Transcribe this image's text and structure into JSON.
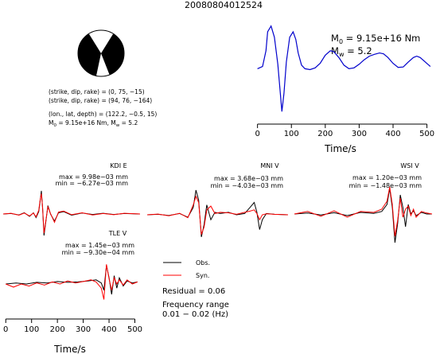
{
  "title": "20080804012524",
  "source_info": {
    "lines": [
      "(strike, dip, rake) = (0, 75, −15)",
      "(strike, dip, rake) = (94, 76, −164)",
      "(lon., lat, depth) = (122.2, −0.5, 15)"
    ],
    "m0_sym": "M",
    "m0_sub": "0",
    "m0_value": " = 9.15e+16 Nm, ",
    "mw_sym": "M",
    "mw_sub": "w",
    "mw_value": " = 5.2"
  },
  "stf": {
    "m0_sym": "M",
    "m0_sub": "0",
    "m0_text": " = 9.15e+16 Nm",
    "mw_sym": "M",
    "mw_sub": "w",
    "mw_text": " = 5.2"
  },
  "legend": {
    "obs": "Obs.",
    "syn": "Syn."
  },
  "residual": "Residual = 0.06",
  "freq": {
    "line1": "Frequency range",
    "line2": "0.01 − 0.02 (Hz)"
  },
  "colors": {
    "obs": "#000000",
    "syn": "#ff0000",
    "stf": "#0000cc",
    "beachball": "#000000"
  },
  "chart_data": [
    {
      "type": "line",
      "name": "source-time-function",
      "xlabel": "Time/s",
      "ylabel": "",
      "xlim": [
        -25,
        515
      ],
      "ylim": [
        -1.0,
        1.05
      ],
      "xticks": [
        0,
        100,
        200,
        300,
        400,
        500
      ],
      "xtick_labels": [
        "0",
        "100",
        "200",
        "300",
        "400",
        "500"
      ],
      "series": [
        {
          "x": [
            0,
            15,
            25,
            30,
            40,
            50,
            60,
            68,
            72,
            78,
            85,
            95,
            105,
            113,
            120,
            130,
            140,
            155,
            170,
            185,
            200,
            215,
            225,
            240,
            255,
            270,
            285,
            300,
            315,
            330,
            345,
            360,
            372,
            385,
            400,
            415,
            430,
            445,
            460,
            470,
            480,
            495,
            510
          ],
          "y": [
            0.0,
            0.05,
            0.4,
            0.82,
            0.95,
            0.7,
            0.1,
            -0.6,
            -0.95,
            -0.55,
            0.15,
            0.7,
            0.82,
            0.65,
            0.35,
            0.08,
            0.0,
            -0.02,
            0.02,
            0.12,
            0.3,
            0.4,
            0.38,
            0.25,
            0.08,
            0.0,
            0.02,
            0.1,
            0.2,
            0.28,
            0.32,
            0.35,
            0.33,
            0.25,
            0.12,
            0.03,
            0.04,
            0.15,
            0.25,
            0.28,
            0.25,
            0.15,
            0.05
          ]
        }
      ]
    },
    {
      "type": "line",
      "station": "KDI E",
      "max_label": "max = 9.98e−03 mm",
      "min_label": "min = −6.27e−03 mm",
      "xlim": [
        0,
        520
      ],
      "ylim": [
        -1.0,
        1.0
      ],
      "series": [
        {
          "name": "Obs.",
          "x": [
            0,
            30,
            60,
            80,
            100,
            115,
            125,
            135,
            140,
            145,
            150,
            155,
            160,
            170,
            180,
            195,
            210,
            230,
            260,
            300,
            340,
            380,
            420,
            460,
            520
          ],
          "y": [
            0.0,
            0.02,
            -0.04,
            0.05,
            -0.1,
            0.05,
            -0.15,
            0.1,
            0.5,
            0.97,
            0.2,
            -0.9,
            -0.5,
            0.35,
            0.0,
            -0.3,
            0.05,
            0.1,
            -0.05,
            0.04,
            -0.02,
            0.03,
            -0.02,
            0.02,
            0.0
          ]
        },
        {
          "name": "Syn.",
          "x": [
            0,
            30,
            60,
            80,
            100,
            115,
            125,
            135,
            140,
            145,
            150,
            155,
            160,
            170,
            180,
            195,
            210,
            230,
            260,
            300,
            340,
            380,
            420,
            460,
            520
          ],
          "y": [
            0.0,
            0.03,
            -0.05,
            0.04,
            -0.08,
            0.04,
            -0.12,
            0.15,
            0.55,
            0.85,
            0.25,
            -0.8,
            -0.45,
            0.3,
            0.02,
            -0.35,
            0.08,
            0.12,
            -0.03,
            0.05,
            -0.04,
            0.02,
            -0.03,
            0.03,
            0.0
          ]
        }
      ]
    },
    {
      "type": "line",
      "station": "MNI V",
      "max_label": "max = 3.68e−03 mm",
      "min_label": "min = −4.03e−03 mm",
      "xlim": [
        0,
        520
      ],
      "ylim": [
        -1.0,
        1.0
      ],
      "series": [
        {
          "name": "Obs.",
          "x": [
            0,
            40,
            80,
            120,
            150,
            170,
            180,
            190,
            200,
            210,
            220,
            235,
            250,
            270,
            300,
            330,
            360,
            380,
            395,
            405,
            415,
            425,
            440,
            470,
            520
          ],
          "y": [
            0.0,
            0.02,
            -0.03,
            0.05,
            -0.1,
            0.3,
            1.0,
            0.6,
            -0.9,
            -0.4,
            0.4,
            -0.2,
            0.1,
            0.05,
            0.1,
            0.0,
            0.05,
            0.3,
            0.5,
            0.1,
            -0.6,
            -0.2,
            0.05,
            0.02,
            0.0
          ]
        },
        {
          "name": "Syn.",
          "x": [
            0,
            40,
            80,
            120,
            150,
            170,
            180,
            190,
            200,
            210,
            220,
            235,
            250,
            270,
            300,
            330,
            360,
            380,
            395,
            405,
            415,
            425,
            440,
            470,
            520
          ],
          "y": [
            0.0,
            0.03,
            -0.04,
            0.06,
            -0.12,
            0.4,
            0.75,
            0.5,
            -0.8,
            -0.5,
            0.2,
            0.35,
            0.05,
            0.1,
            0.08,
            0.02,
            0.1,
            0.15,
            0.2,
            0.05,
            -0.2,
            0.0,
            0.04,
            0.02,
            0.0
          ]
        }
      ]
    },
    {
      "type": "line",
      "station": "WSI V",
      "max_label": "max = 1.20e−03 mm",
      "min_label": "min = −1.48e−03 mm",
      "xlim": [
        0,
        520
      ],
      "ylim": [
        -1.0,
        1.0
      ],
      "series": [
        {
          "name": "Obs.",
          "x": [
            0,
            50,
            100,
            150,
            200,
            250,
            300,
            330,
            350,
            360,
            370,
            380,
            390,
            400,
            410,
            420,
            430,
            440,
            450,
            460,
            480,
            500,
            520
          ],
          "y": [
            0.0,
            0.03,
            -0.03,
            0.04,
            -0.05,
            0.05,
            0.02,
            0.08,
            0.3,
            0.8,
            0.2,
            -0.9,
            -0.3,
            0.6,
            0.2,
            -0.4,
            0.3,
            0.0,
            0.1,
            -0.05,
            0.05,
            0.0,
            0.0
          ]
        },
        {
          "name": "Syn.",
          "x": [
            0,
            50,
            100,
            150,
            200,
            250,
            300,
            330,
            350,
            360,
            370,
            380,
            390,
            400,
            410,
            420,
            430,
            440,
            450,
            460,
            480,
            500,
            520
          ],
          "y": [
            0.0,
            0.08,
            -0.07,
            0.1,
            -0.1,
            0.08,
            0.05,
            0.15,
            0.4,
            0.85,
            0.3,
            -0.7,
            -0.2,
            0.5,
            -0.1,
            0.15,
            0.25,
            -0.05,
            0.15,
            -0.1,
            0.08,
            0.03,
            0.0
          ]
        }
      ]
    },
    {
      "type": "line",
      "station": "TLE V",
      "max_label": "max = 1.45e−03 mm",
      "min_label": "min = −9.30e−04 mm",
      "xlabel": "Time/s",
      "xlim": [
        -10,
        520
      ],
      "ylim": [
        -1.0,
        1.0
      ],
      "xticks": [
        0,
        100,
        200,
        300,
        400,
        500
      ],
      "xtick_labels": [
        "0",
        "100",
        "200",
        "300",
        "400",
        "500"
      ],
      "series": [
        {
          "name": "Obs.",
          "x": [
            0,
            40,
            80,
            120,
            160,
            200,
            240,
            280,
            320,
            350,
            370,
            380,
            390,
            400,
            410,
            420,
            430,
            440,
            455,
            470,
            490,
            510
          ],
          "y": [
            0.0,
            0.05,
            0.0,
            0.08,
            0.05,
            0.12,
            0.08,
            0.1,
            0.15,
            0.2,
            0.05,
            -0.3,
            0.9,
            0.3,
            -0.5,
            0.4,
            -0.2,
            0.3,
            -0.1,
            0.15,
            0.05,
            0.1
          ]
        },
        {
          "name": "Syn.",
          "x": [
            0,
            30,
            60,
            90,
            120,
            150,
            180,
            210,
            240,
            270,
            300,
            330,
            350,
            370,
            380,
            390,
            400,
            410,
            420,
            430,
            440,
            455,
            470,
            490,
            510
          ],
          "y": [
            0.0,
            -0.15,
            0.0,
            -0.1,
            0.05,
            -0.05,
            0.1,
            0.0,
            0.15,
            0.05,
            0.12,
            0.2,
            0.1,
            -0.2,
            -0.75,
            0.95,
            0.25,
            -0.3,
            0.3,
            0.0,
            0.2,
            -0.05,
            0.2,
            0.0,
            0.1
          ]
        }
      ]
    }
  ]
}
